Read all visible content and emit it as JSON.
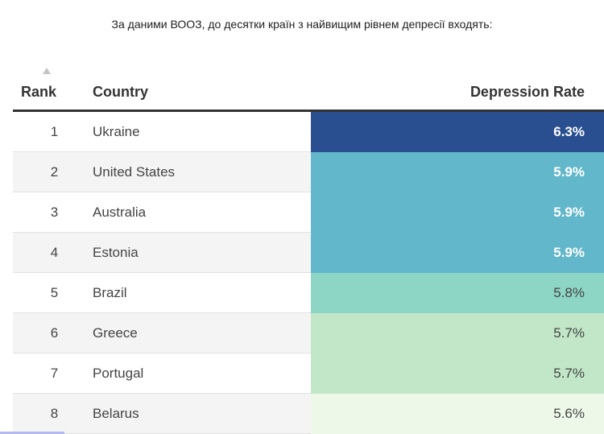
{
  "caption": "За даними ВООЗ, до десятки країн з найвищим рівнем депресії входять:",
  "colors": {
    "scale_high": "#2a4f91",
    "scale_mid_high": "#62b7ca",
    "scale_mid": "#8dd5c5",
    "scale_low": "#c1e7c8",
    "scale_lowest": "#eef8e9"
  },
  "table": {
    "sort_icon": "sort-ascending-triangle",
    "columns": [
      "Rank",
      "Country",
      "Depression Rate"
    ],
    "rows": [
      {
        "rank": "1",
        "country": "Ukraine",
        "rate": "6.3%",
        "bg": "#2a4f91",
        "fg": "#ffffff",
        "bold": true
      },
      {
        "rank": "2",
        "country": "United States",
        "rate": "5.9%",
        "bg": "#62b7ca",
        "fg": "#ffffff",
        "bold": true
      },
      {
        "rank": "3",
        "country": "Australia",
        "rate": "5.9%",
        "bg": "#62b7ca",
        "fg": "#ffffff",
        "bold": true
      },
      {
        "rank": "4",
        "country": "Estonia",
        "rate": "5.9%",
        "bg": "#62b7ca",
        "fg": "#ffffff",
        "bold": true
      },
      {
        "rank": "5",
        "country": "Brazil",
        "rate": "5.8%",
        "bg": "#8dd5c5",
        "fg": "#444444",
        "bold": false
      },
      {
        "rank": "6",
        "country": "Greece",
        "rate": "5.7%",
        "bg": "#c1e7c8",
        "fg": "#444444",
        "bold": false
      },
      {
        "rank": "7",
        "country": "Portugal",
        "rate": "5.7%",
        "bg": "#c1e7c8",
        "fg": "#444444",
        "bold": false
      },
      {
        "rank": "8",
        "country": "Belarus",
        "rate": "5.6%",
        "bg": "#eef8e9",
        "fg": "#444444",
        "bold": false
      }
    ]
  },
  "chart_data": {
    "type": "table",
    "columns": [
      "Rank",
      "Country",
      "Depression Rate"
    ],
    "categories": [
      "Ukraine",
      "United States",
      "Australia",
      "Estonia",
      "Brazil",
      "Greece",
      "Portugal",
      "Belarus"
    ],
    "ranks": [
      1,
      2,
      3,
      4,
      5,
      6,
      7,
      8
    ],
    "values": [
      6.3,
      5.9,
      5.9,
      5.9,
      5.8,
      5.7,
      5.7,
      5.6
    ],
    "value_unit": "%"
  }
}
